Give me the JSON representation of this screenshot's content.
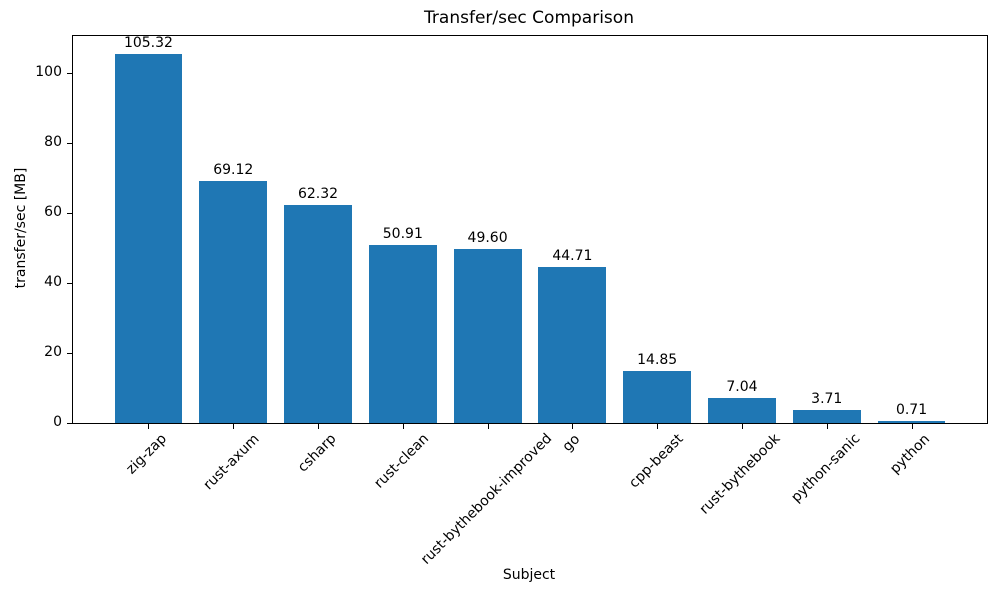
{
  "chart_data": {
    "type": "bar",
    "title": "Transfer/sec Comparison",
    "xlabel": "Subject",
    "ylabel": "transfer/sec [MB]",
    "categories": [
      "zig-zap",
      "rust-axum",
      "csharp",
      "rust-clean",
      "rust-bythebook-improved",
      "go",
      "cpp-beast",
      "rust-bythebook",
      "python-sanic",
      "python"
    ],
    "values": [
      105.32,
      69.12,
      62.32,
      50.91,
      49.6,
      44.71,
      14.85,
      7.04,
      3.71,
      0.71
    ],
    "value_labels": [
      "105.32",
      "69.12",
      "62.32",
      "50.91",
      "49.60",
      "44.71",
      "14.85",
      "7.04",
      "3.71",
      "0.71"
    ],
    "yticks": [
      0,
      20,
      40,
      60,
      80,
      100
    ],
    "ylim": [
      0,
      110.6
    ],
    "xlim": [
      -0.89,
      9.89
    ],
    "bar_rel_width": 0.8,
    "bar_color": "#1f77b4",
    "text_color": "#000000",
    "grid": false,
    "legend": null
  }
}
